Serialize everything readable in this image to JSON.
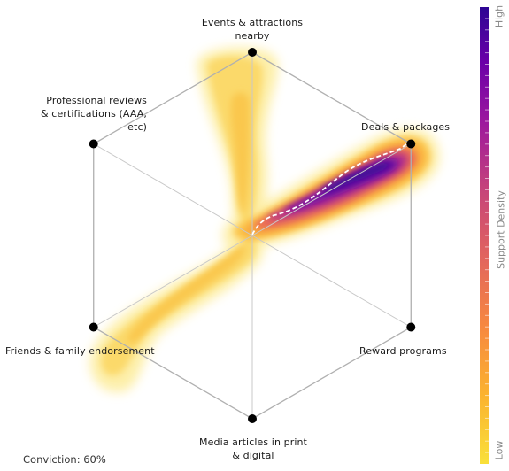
{
  "chart_data": {
    "type": "radar-density",
    "axes": [
      {
        "label": "Events & attractions\nnearby"
      },
      {
        "label": "Deals & packages"
      },
      {
        "label": "Reward programs"
      },
      {
        "label": "Media articles in print\n& digital"
      },
      {
        "label": "Friends & family endorsement"
      },
      {
        "label": "Professional reviews\n& certifications (AAA,\netc)"
      }
    ],
    "colorbar": {
      "title": "Support Density",
      "high_label": "High",
      "low_label": "Low",
      "colors": [
        "#f9e03a",
        "#fca236",
        "#f07f4f",
        "#db5c68",
        "#c13e84",
        "#9c179e",
        "#6a00a8",
        "#2c0594"
      ]
    },
    "conviction": {
      "label": "Conviction: 60%",
      "value": 0.6
    },
    "density_lobes": [
      {
        "toward": "Deals & packages",
        "reach": 1.0,
        "intensity": "high"
      },
      {
        "toward": "Friends & family endorsement",
        "reach": 1.0,
        "intensity": "low"
      },
      {
        "toward": "Events & attractions\nnearby",
        "reach": 1.0,
        "intensity": "low"
      }
    ]
  }
}
